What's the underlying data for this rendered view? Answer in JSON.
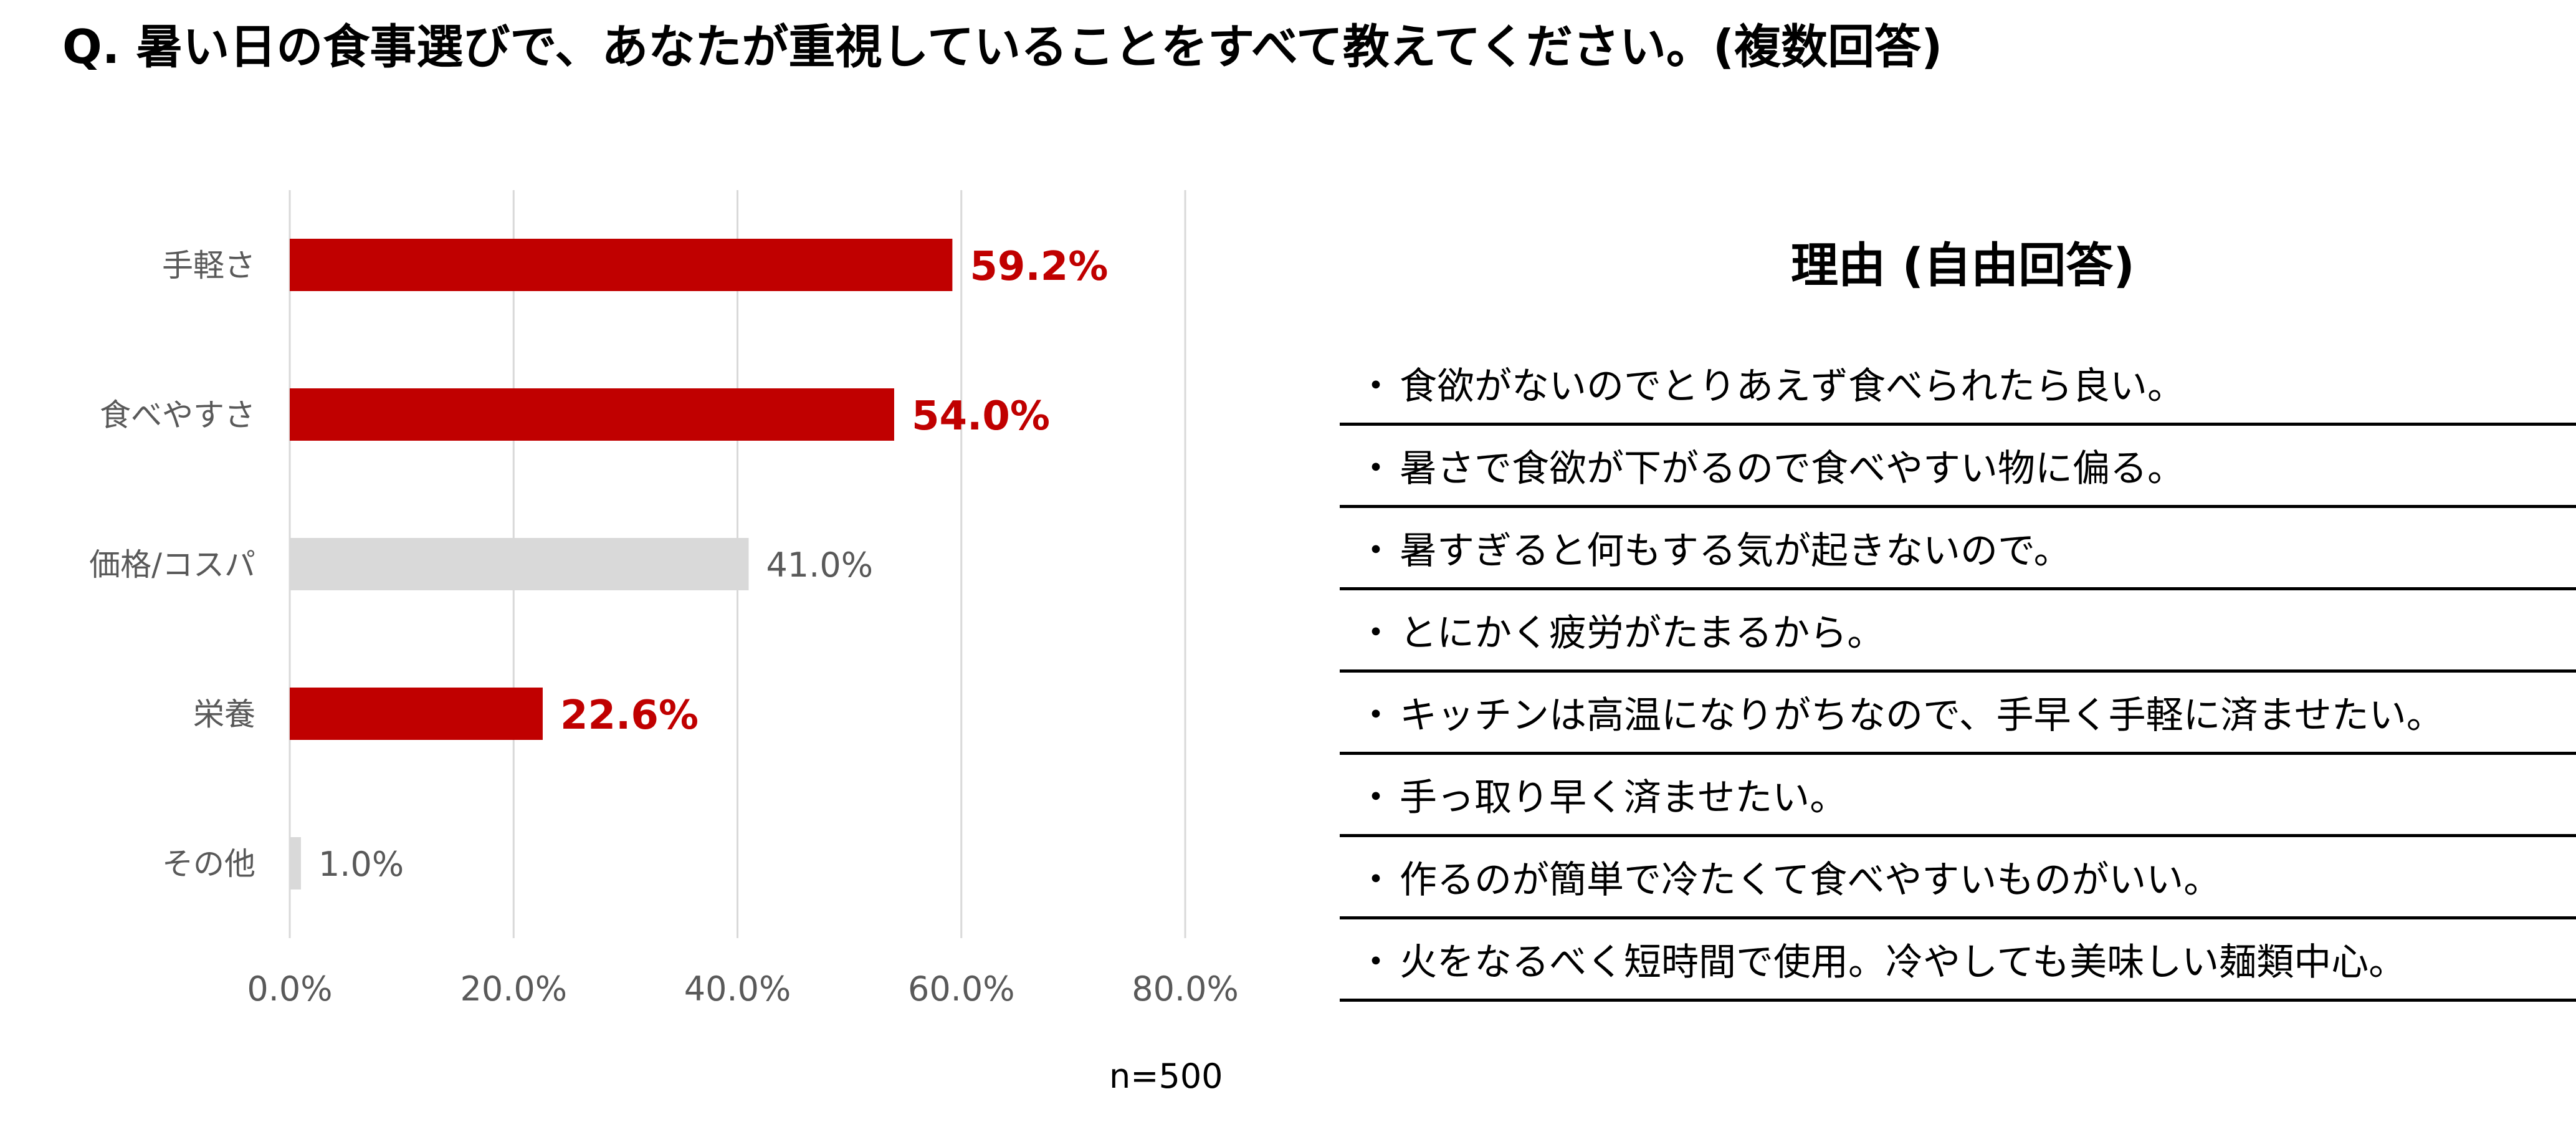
{
  "title": "Q. 暑い日の食事選びで、あなたが重視していることをすべて教えてください。(複数回答)",
  "chart_data": {
    "type": "bar",
    "orientation": "horizontal",
    "categories": [
      "手軽さ",
      "食べやすさ",
      "価格/コスパ",
      "栄養",
      "その他"
    ],
    "values": [
      59.2,
      54.0,
      41.0,
      22.6,
      1.0
    ],
    "value_labels": [
      "59.2%",
      "54.0%",
      "41.0%",
      "22.6%",
      "1.0%"
    ],
    "highlighted": [
      true,
      true,
      false,
      true,
      false
    ],
    "xlim": [
      0,
      80
    ],
    "xticks": [
      0,
      20,
      40,
      60,
      80
    ],
    "xtick_labels": [
      "0.0%",
      "20.0%",
      "40.0%",
      "60.0%",
      "80.0%"
    ],
    "grid": true,
    "colors": {
      "highlight": "#c00000",
      "default": "#d9d9d9",
      "grid": "#d9d9d9",
      "category_text": "#595959",
      "tick_text": "#595959",
      "default_label_text": "#595959"
    }
  },
  "sample_size": "n=500",
  "reasons": {
    "title": "理由 (自由回答)",
    "bullet": "・",
    "items": [
      "食欲がないのでとりあえず食べられたら良い。",
      "暑さで食欲が下がるので食べやすい物に偏る。",
      "暑すぎると何もする気が起きないので。",
      "とにかく疲労がたまるから。",
      "キッチンは高温になりがちなので、手早く手軽に済ませたい。",
      "手っ取り早く済ませたい。",
      "作るのが簡単で冷たくて食べやすいものがいい。",
      "火をなるべく短時間で使用。冷やしても美味しい麺類中心。"
    ]
  }
}
